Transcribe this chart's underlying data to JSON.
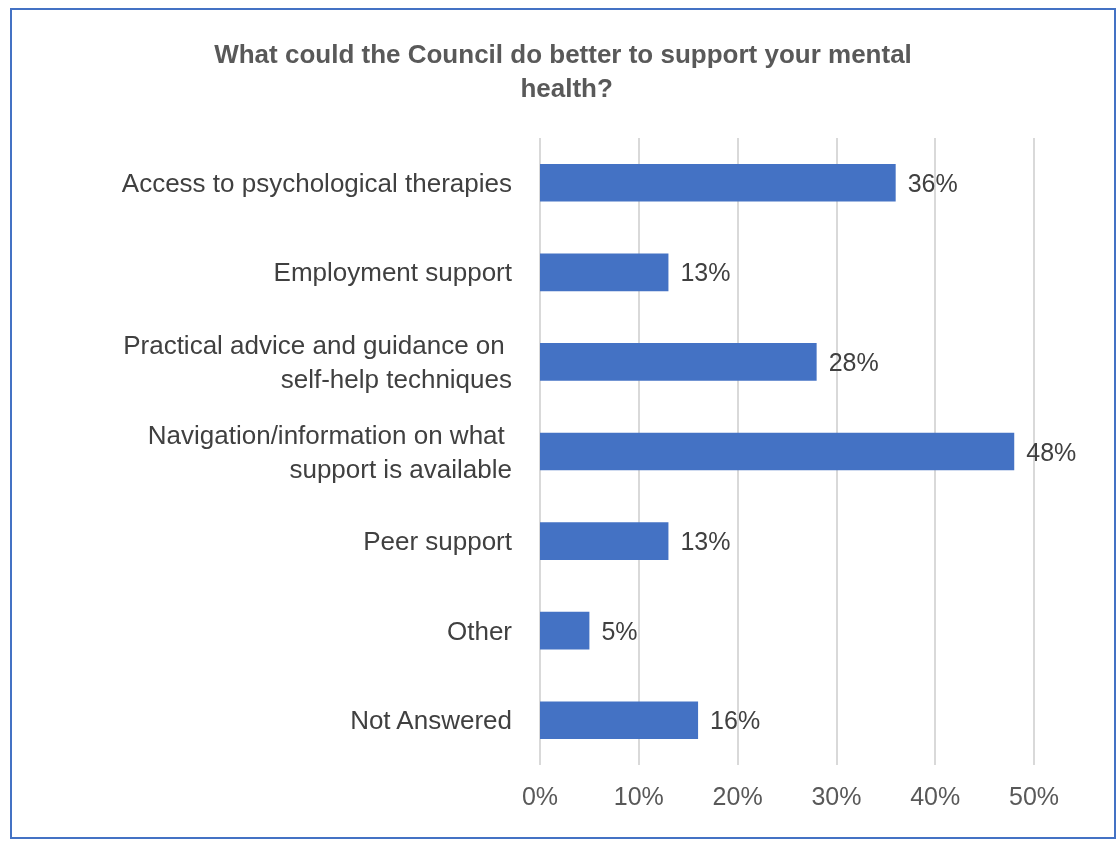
{
  "chart_data": {
    "type": "bar",
    "orientation": "horizontal",
    "title": "What could the Council do better to support your mental health?",
    "categories": [
      "Access to psychological therapies",
      "Employment support",
      "Practical advice and guidance on self-help techniques",
      "Navigation/information on what support is available",
      "Peer support",
      "Other",
      "Not Answered"
    ],
    "values": [
      36,
      13,
      28,
      48,
      13,
      5,
      16
    ],
    "value_labels": [
      "36%",
      "13%",
      "28%",
      "48%",
      "13%",
      "5%",
      "16%"
    ],
    "color": "#4472c4",
    "xlim": [
      0,
      50
    ],
    "xticks": [
      {
        "value": 0,
        "label": "0%"
      },
      {
        "value": 10,
        "label": "10%"
      },
      {
        "value": 20,
        "label": "20%"
      },
      {
        "value": 30,
        "label": "30%"
      },
      {
        "value": 40,
        "label": "40%"
      },
      {
        "value": 50,
        "label": "50%"
      }
    ],
    "grid": "x"
  }
}
